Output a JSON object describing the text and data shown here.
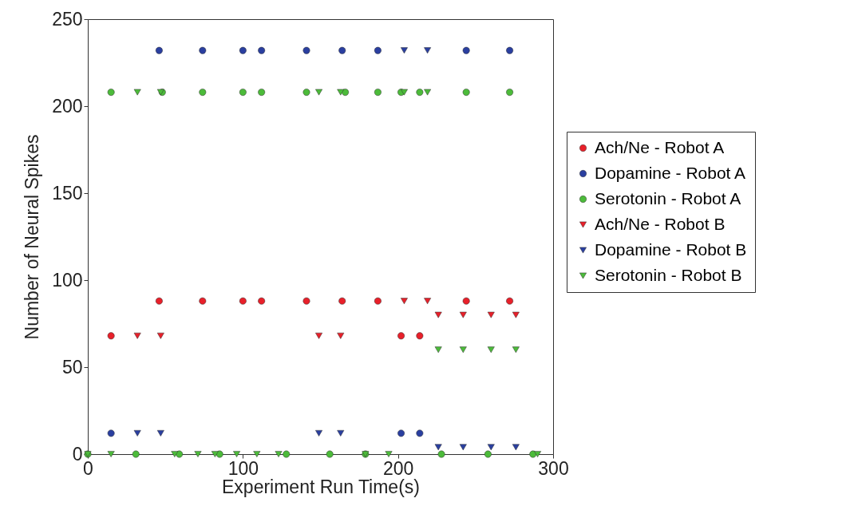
{
  "chart_data": {
    "type": "scatter",
    "xlabel": "Experiment Run Time(s)",
    "ylabel": "Number of Neural Spikes",
    "xlim": [
      0,
      300
    ],
    "xticks": [
      0,
      100,
      200,
      300
    ],
    "ylim": [
      0,
      250
    ],
    "yticks": [
      0,
      50,
      100,
      150,
      200,
      250
    ],
    "legend": "right",
    "series": [
      {
        "name": "Ach/Ne - Robot A",
        "color": "#e8202a",
        "marker": "circle",
        "x": [
          15,
          46,
          74,
          100,
          112,
          141,
          164,
          187,
          202,
          214,
          244,
          272
        ],
        "values": [
          68,
          88,
          88,
          88,
          88,
          88,
          88,
          88,
          68,
          68,
          88,
          88
        ]
      },
      {
        "name": "Dopamine - Robot A",
        "color": "#2a3fa0",
        "marker": "circle",
        "x": [
          15,
          46,
          74,
          100,
          112,
          141,
          164,
          187,
          202,
          214,
          244,
          272
        ],
        "values": [
          12,
          232,
          232,
          232,
          232,
          232,
          232,
          232,
          12,
          12,
          232,
          232
        ]
      },
      {
        "name": "Serotonin - Robot A",
        "color": "#4cbb3a",
        "marker": "circle",
        "x": [
          15,
          48,
          74,
          100,
          112,
          141,
          166,
          187,
          202,
          214,
          244,
          272,
          0,
          31,
          59,
          85,
          128,
          156,
          179,
          228,
          258,
          287
        ],
        "values": [
          208,
          208,
          208,
          208,
          208,
          208,
          208,
          208,
          208,
          208,
          208,
          208,
          0,
          0,
          0,
          0,
          0,
          0,
          0,
          0,
          0,
          0
        ]
      },
      {
        "name": "Ach/Ne - Robot B",
        "color": "#e8202a",
        "marker": "triangle",
        "x": [
          32,
          47,
          149,
          163,
          204,
          219,
          226,
          242,
          260,
          276
        ],
        "values": [
          68,
          68,
          68,
          68,
          88,
          88,
          80,
          80,
          80,
          80
        ]
      },
      {
        "name": "Dopamine - Robot B",
        "color": "#2a3fa0",
        "marker": "triangle",
        "x": [
          32,
          47,
          149,
          163,
          204,
          219,
          226,
          242,
          260,
          276
        ],
        "values": [
          12,
          12,
          12,
          12,
          232,
          232,
          4,
          4,
          4,
          4
        ]
      },
      {
        "name": "Serotonin - Robot B",
        "color": "#4cbb3a",
        "marker": "triangle",
        "x": [
          32,
          47,
          149,
          163,
          204,
          219,
          226,
          242,
          260,
          276,
          0,
          15,
          56,
          71,
          82,
          96,
          109,
          123,
          179,
          194,
          290
        ],
        "values": [
          208,
          208,
          208,
          208,
          208,
          208,
          60,
          60,
          60,
          60,
          0,
          0,
          0,
          0,
          0,
          0,
          0,
          0,
          0,
          0,
          0
        ]
      }
    ]
  }
}
